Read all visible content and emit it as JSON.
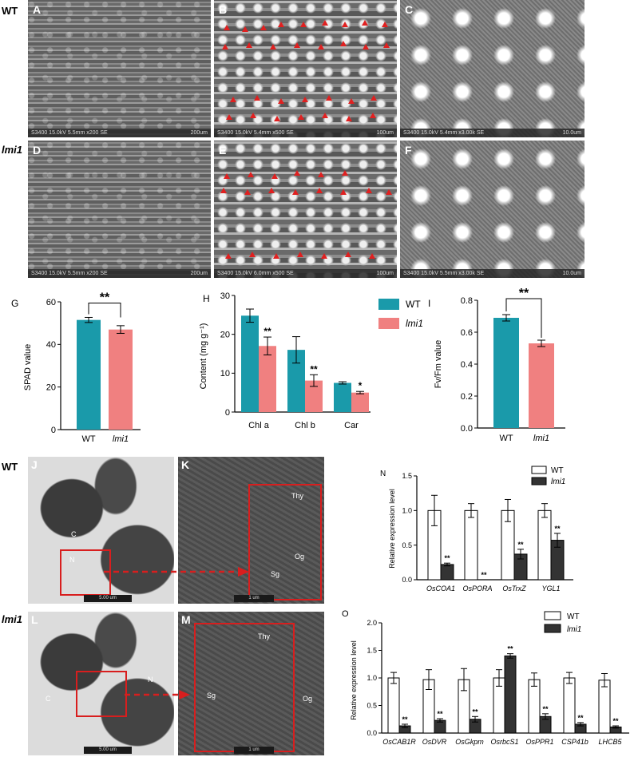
{
  "rows": {
    "wt": "WT",
    "lmi1": "lmi1"
  },
  "sem": {
    "A": {
      "letter": "A",
      "footer": "S3400 15.0kV 5.5mm x200 SE",
      "scale": "200um"
    },
    "B": {
      "letter": "B",
      "footer": "S3400 15.0kV 5.4mm x500 SE",
      "scale": "100um"
    },
    "C": {
      "letter": "C",
      "footer": "S3400 15.0kV 5.4mm x3.00k SE",
      "scale": "10.0um"
    },
    "D": {
      "letter": "D",
      "footer": "S3400 15.0kV 5.5mm x200 SE",
      "scale": "200um"
    },
    "E": {
      "letter": "E",
      "footer": "S3400 15.0kV 6.0mm x500 SE",
      "scale": "100um"
    },
    "F": {
      "letter": "F",
      "footer": "S3400 15.0kV 5.5mm x3.00k SE",
      "scale": "10.0um"
    }
  },
  "tem": {
    "J": {
      "letter": "J",
      "labels": [
        "C",
        "N"
      ],
      "scale": "5.00 um"
    },
    "K": {
      "letter": "K",
      "labels": [
        "Thy",
        "Og",
        "Sg"
      ],
      "scale": "1 um"
    },
    "L": {
      "letter": "L",
      "labels": [
        "C",
        "N"
      ],
      "scale": "5.00 um"
    },
    "M": {
      "letter": "M",
      "labels": [
        "Thy",
        "Sg",
        "Og"
      ],
      "scale": "1 um"
    }
  },
  "colors": {
    "wt": "#1a9aaa",
    "lmi1": "#f08080",
    "red": "#d81e1e",
    "dark_bar": "#333333"
  },
  "chart_data": [
    {
      "panel": "G",
      "type": "bar",
      "categories": [
        "WT",
        "lmi1"
      ],
      "values": [
        51.5,
        47
      ],
      "errors": [
        1.2,
        1.8
      ],
      "ylabel": "SPAD value",
      "ylim": [
        0,
        60
      ],
      "yticks": [
        0,
        20,
        40,
        60
      ],
      "significance": "**"
    },
    {
      "panel": "H",
      "type": "bar",
      "categories": [
        "Chl a",
        "Chl b",
        "Car"
      ],
      "series": [
        {
          "name": "WT",
          "values": [
            24.8,
            16,
            7.5
          ],
          "errors": [
            1.7,
            3.4,
            0.3
          ]
        },
        {
          "name": "lmi1",
          "values": [
            17,
            8.1,
            5
          ],
          "errors": [
            2.3,
            1.5,
            0.3
          ]
        }
      ],
      "marks": [
        "**",
        "**",
        "*"
      ],
      "ylabel": "Content (mg g⁻¹)",
      "ylim": [
        0,
        30
      ],
      "yticks": [
        0,
        10,
        20,
        30
      ]
    },
    {
      "panel": "I",
      "type": "bar",
      "categories": [
        "WT",
        "lmi1"
      ],
      "values": [
        0.69,
        0.53
      ],
      "errors": [
        0.02,
        0.02
      ],
      "ylabel": "Fv/Fm value",
      "ylim": [
        0,
        0.8
      ],
      "yticks": [
        0.0,
        0.2,
        0.4,
        0.6,
        0.8
      ],
      "significance": "**"
    },
    {
      "panel": "N",
      "type": "bar",
      "categories": [
        "OsCOA1",
        "OsPORA",
        "OsTrxZ",
        "YGL1"
      ],
      "series": [
        {
          "name": "WT",
          "values": [
            1.0,
            1.0,
            1.0,
            1.0
          ],
          "errors": [
            0.22,
            0.1,
            0.16,
            0.1
          ]
        },
        {
          "name": "lmi1",
          "values": [
            0.22,
            0.0,
            0.37,
            0.57
          ],
          "errors": [
            0.02,
            0.0,
            0.07,
            0.1
          ]
        }
      ],
      "marks": [
        "**",
        "**",
        "**",
        "**"
      ],
      "ylabel": "Relative expression level",
      "ylim": [
        0,
        1.5
      ],
      "yticks": [
        0.0,
        0.5,
        1.0,
        1.5
      ]
    },
    {
      "panel": "O",
      "type": "bar",
      "categories": [
        "OsCAB1R",
        "OsDVR",
        "OsGkpm",
        "OsrbcS1",
        "OsPPR1",
        "CSP41b",
        "LHCB5"
      ],
      "series": [
        {
          "name": "WT",
          "values": [
            1.0,
            0.97,
            0.97,
            1.0,
            0.97,
            1.0,
            0.96
          ],
          "errors": [
            0.1,
            0.18,
            0.2,
            0.15,
            0.12,
            0.1,
            0.12
          ]
        },
        {
          "name": "lmi1",
          "values": [
            0.13,
            0.23,
            0.25,
            1.4,
            0.3,
            0.16,
            0.11
          ],
          "errors": [
            0.03,
            0.03,
            0.05,
            0.04,
            0.05,
            0.03,
            0.02
          ]
        }
      ],
      "marks": [
        "**",
        "**",
        "**",
        "**",
        "**",
        "**",
        "**"
      ],
      "ylabel": "Relative expression level",
      "ylim": [
        0,
        2.0
      ],
      "yticks": [
        0.0,
        0.5,
        1.0,
        1.5,
        2.0
      ]
    }
  ],
  "chart_letters": {
    "G": "G",
    "H": "H",
    "I": "I",
    "N": "N",
    "O": "O"
  }
}
